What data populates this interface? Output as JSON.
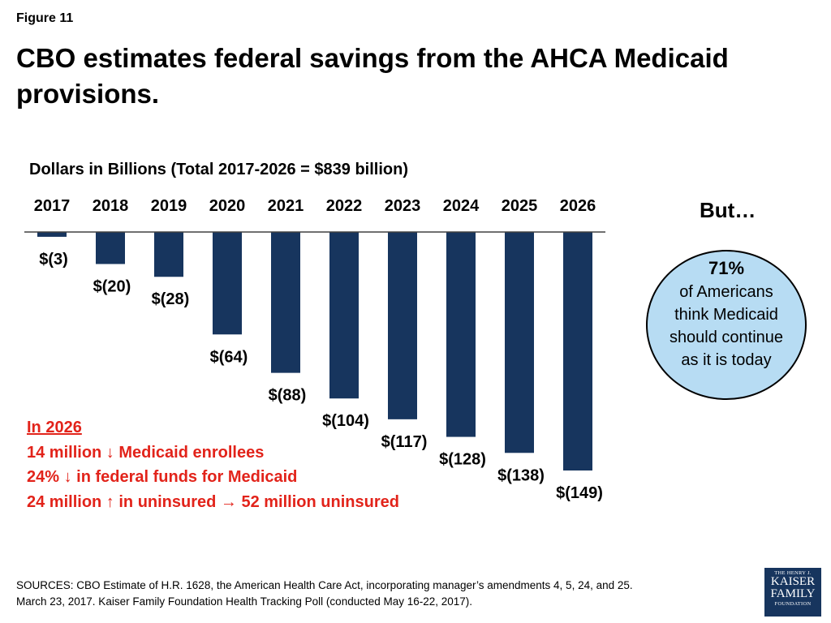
{
  "figure_label": "Figure 11",
  "title": "CBO estimates federal savings from the AHCA Medicaid provisions.",
  "chart_data": {
    "type": "bar",
    "title": "",
    "subtitle": "Dollars in Billions (Total 2017-2026 = $839 billion)",
    "categories": [
      "2017",
      "2018",
      "2019",
      "2020",
      "2021",
      "2022",
      "2023",
      "2024",
      "2025",
      "2026"
    ],
    "values": [
      -3,
      -20,
      -28,
      -64,
      -88,
      -104,
      -117,
      -128,
      -138,
      -149
    ],
    "value_labels": [
      "$(3)",
      "$(20)",
      "$(28)",
      "$(64)",
      "$(88)",
      "$(104)",
      "$(117)",
      "$(128)",
      "$(138)",
      "$(149)"
    ],
    "ylim": [
      -149,
      0
    ],
    "grid": false,
    "bar_color": "#17355e",
    "category_axis_position": "top"
  },
  "callout": {
    "but_text": "But…",
    "percent": "71%",
    "lines": [
      "of Americans",
      "think Medicaid",
      "should continue",
      "as it is today"
    ],
    "fill_color": "#b7dcf3"
  },
  "note": {
    "heading": "In 2026",
    "lines": [
      "14 million ↓ Medicaid enrollees",
      "24% ↓ in federal funds for Medicaid",
      "24 million ↑ in uninsured → 52 million uninsured"
    ],
    "color": "#e2231a"
  },
  "sources": {
    "line1": "SOURCES: CBO Estimate of H.R. 1628, the American Health Care Act, incorporating manager’s amendments 4, 5, 24, and 25.",
    "line2": "March 23, 2017. Kaiser Family Foundation Health Tracking Poll (conducted May 16-22, 2017)."
  },
  "logo": {
    "line1": "THE HENRY J.",
    "line2": "KAISER",
    "line3": "FAMILY",
    "line4": "FOUNDATION",
    "color": "#17355e"
  }
}
